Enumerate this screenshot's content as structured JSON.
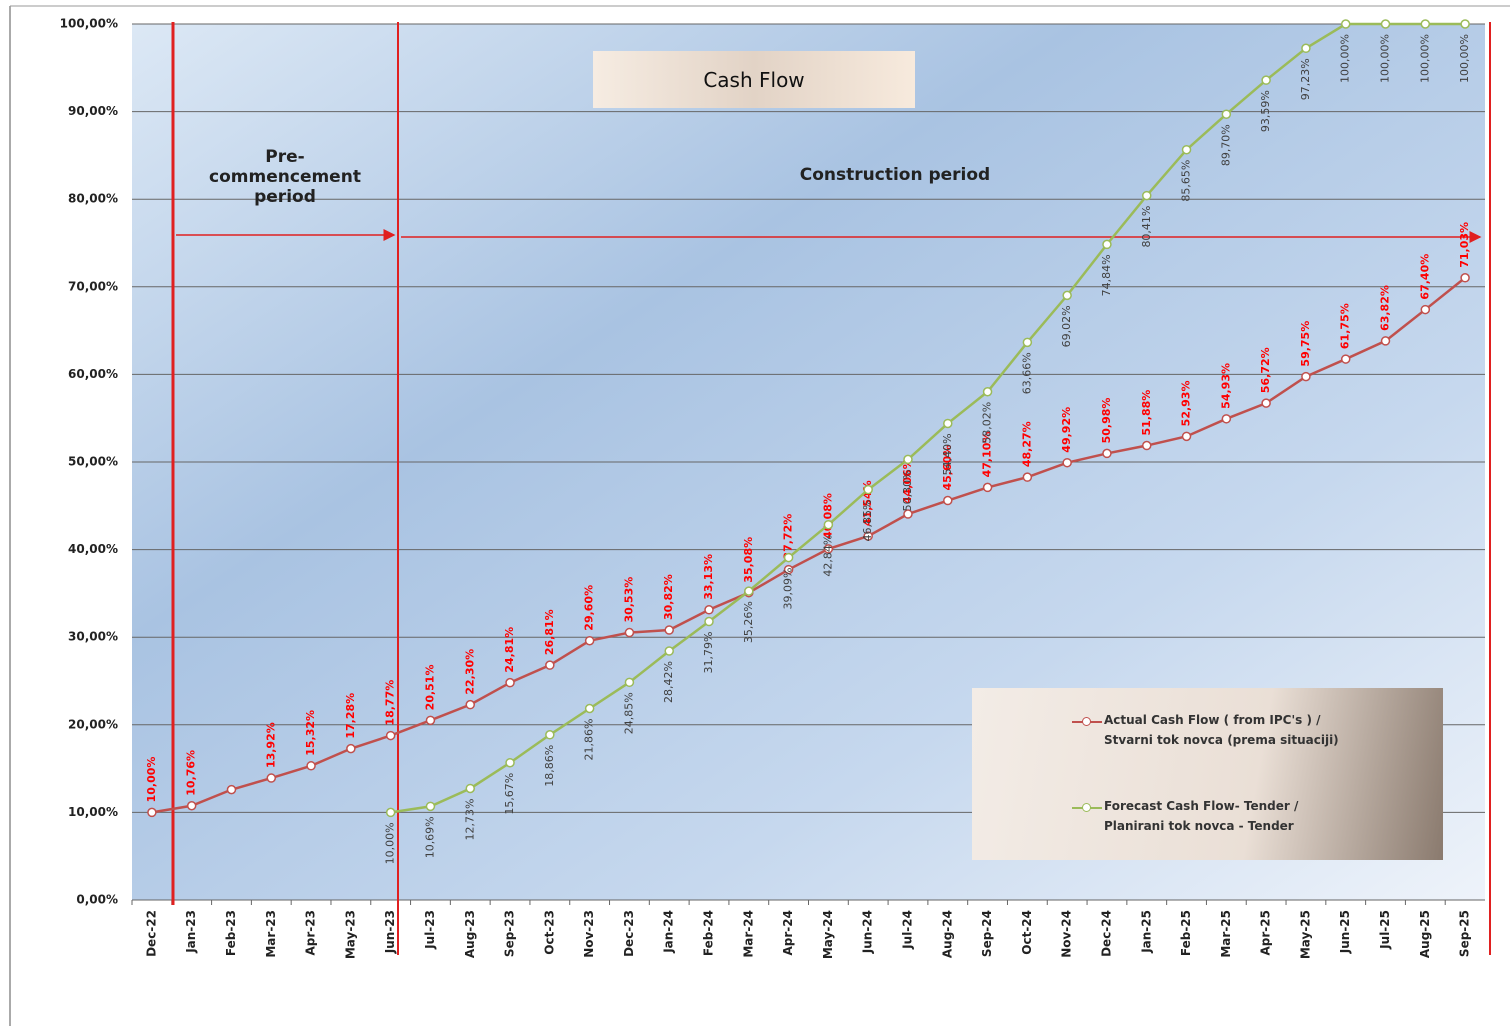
{
  "chart_data": {
    "type": "line",
    "title": "Cash Flow",
    "annotations": [
      "Pre-commencement period",
      "Construction period"
    ],
    "categories": [
      "Dec-22",
      "Jan-23",
      "Feb-23",
      "Mar-23",
      "Apr-23",
      "May-23",
      "Jun-23",
      "Jul-23",
      "Aug-23",
      "Sep-23",
      "Oct-23",
      "Nov-23",
      "Dec-23",
      "Jan-24",
      "Feb-24",
      "Mar-24",
      "Apr-24",
      "May-24",
      "Jun-24",
      "Jul-24",
      "Aug-24",
      "Sep-24",
      "Oct-24",
      "Nov-24",
      "Dec-24",
      "Jan-25",
      "Feb-25",
      "Mar-25",
      "Apr-25",
      "May-25",
      "Jun-25",
      "Jul-25",
      "Aug-25",
      "Sep-25"
    ],
    "series": [
      {
        "name": "Actual Cash Flow ( from IPC's ) / Stvarni tok novca (prema situaciji)",
        "color": "#c0504d",
        "label_color": "#ff0000",
        "values": [
          10.0,
          10.76,
          12.6,
          13.92,
          15.32,
          17.28,
          18.77,
          20.51,
          22.3,
          24.81,
          26.81,
          29.6,
          30.53,
          30.82,
          33.13,
          35.08,
          37.72,
          40.08,
          41.54,
          44.06,
          45.6,
          47.1,
          48.27,
          49.92,
          50.98,
          51.88,
          52.93,
          54.93,
          56.72,
          59.75,
          61.75,
          63.82,
          67.4,
          71.03
        ],
        "value_labels": [
          "10,00%",
          "10,76%",
          null,
          "13,92%",
          "15,32%",
          "17,28%",
          "18,77%",
          "20,51%",
          "22,30%",
          "24,81%",
          "26,81%",
          "29,60%",
          "30,53%",
          "30,82%",
          "33,13%",
          "35,08%",
          "37,72%",
          "40,08%",
          "41,54%",
          "44,06%",
          "45,60%",
          "47,10%",
          "48,27%",
          "49,92%",
          "50,98%",
          "51,88%",
          "52,93%",
          "54,93%",
          "56,72%",
          "59,75%",
          "61,75%",
          "63,82%",
          "67,40%",
          "71,03%"
        ]
      },
      {
        "name": "Forecast  Cash Flow- Tender / Planirani tok novca - Tender",
        "color": "#9bbb59",
        "label_color": "#404040",
        "values": [
          null,
          null,
          null,
          null,
          null,
          null,
          10.0,
          10.69,
          12.73,
          15.67,
          18.86,
          21.86,
          24.85,
          28.42,
          31.79,
          35.26,
          39.09,
          42.84,
          46.85,
          50.3,
          54.4,
          58.02,
          63.66,
          69.02,
          74.84,
          80.41,
          85.65,
          89.7,
          93.59,
          97.23,
          100.0,
          100.0,
          100.0,
          100.0
        ],
        "value_labels": [
          null,
          null,
          null,
          null,
          null,
          null,
          "10,00%",
          "10,69%",
          "12,73%",
          "15,67%",
          "18,86%",
          "21,86%",
          "24,85%",
          "28,42%",
          "31,79%",
          "35,26%",
          "39,09%",
          "42,84%",
          "46,85%",
          "50,30%",
          "54,40%",
          "58,02%",
          "63,66%",
          "69,02%",
          "74,84%",
          "80,41%",
          "85,65%",
          "89,70%",
          "93,59%",
          "97,23%",
          "100,00%",
          "100,00%",
          "100,00%",
          "100,00%"
        ]
      }
    ],
    "ylim": [
      0,
      100
    ],
    "yticks": [
      {
        "value": 0,
        "label": "0,00%"
      },
      {
        "value": 10,
        "label": "10,00%"
      },
      {
        "value": 20,
        "label": "20,00%"
      },
      {
        "value": 30,
        "label": "30,00%"
      },
      {
        "value": 40,
        "label": "40,00%"
      },
      {
        "value": 50,
        "label": "50,00%"
      },
      {
        "value": 60,
        "label": "60,00%"
      },
      {
        "value": 70,
        "label": "70,00%"
      },
      {
        "value": 80,
        "label": "80,00%"
      },
      {
        "value": 90,
        "label": "90,00%"
      },
      {
        "value": 100,
        "label": "100,00%"
      }
    ],
    "grid": true
  }
}
